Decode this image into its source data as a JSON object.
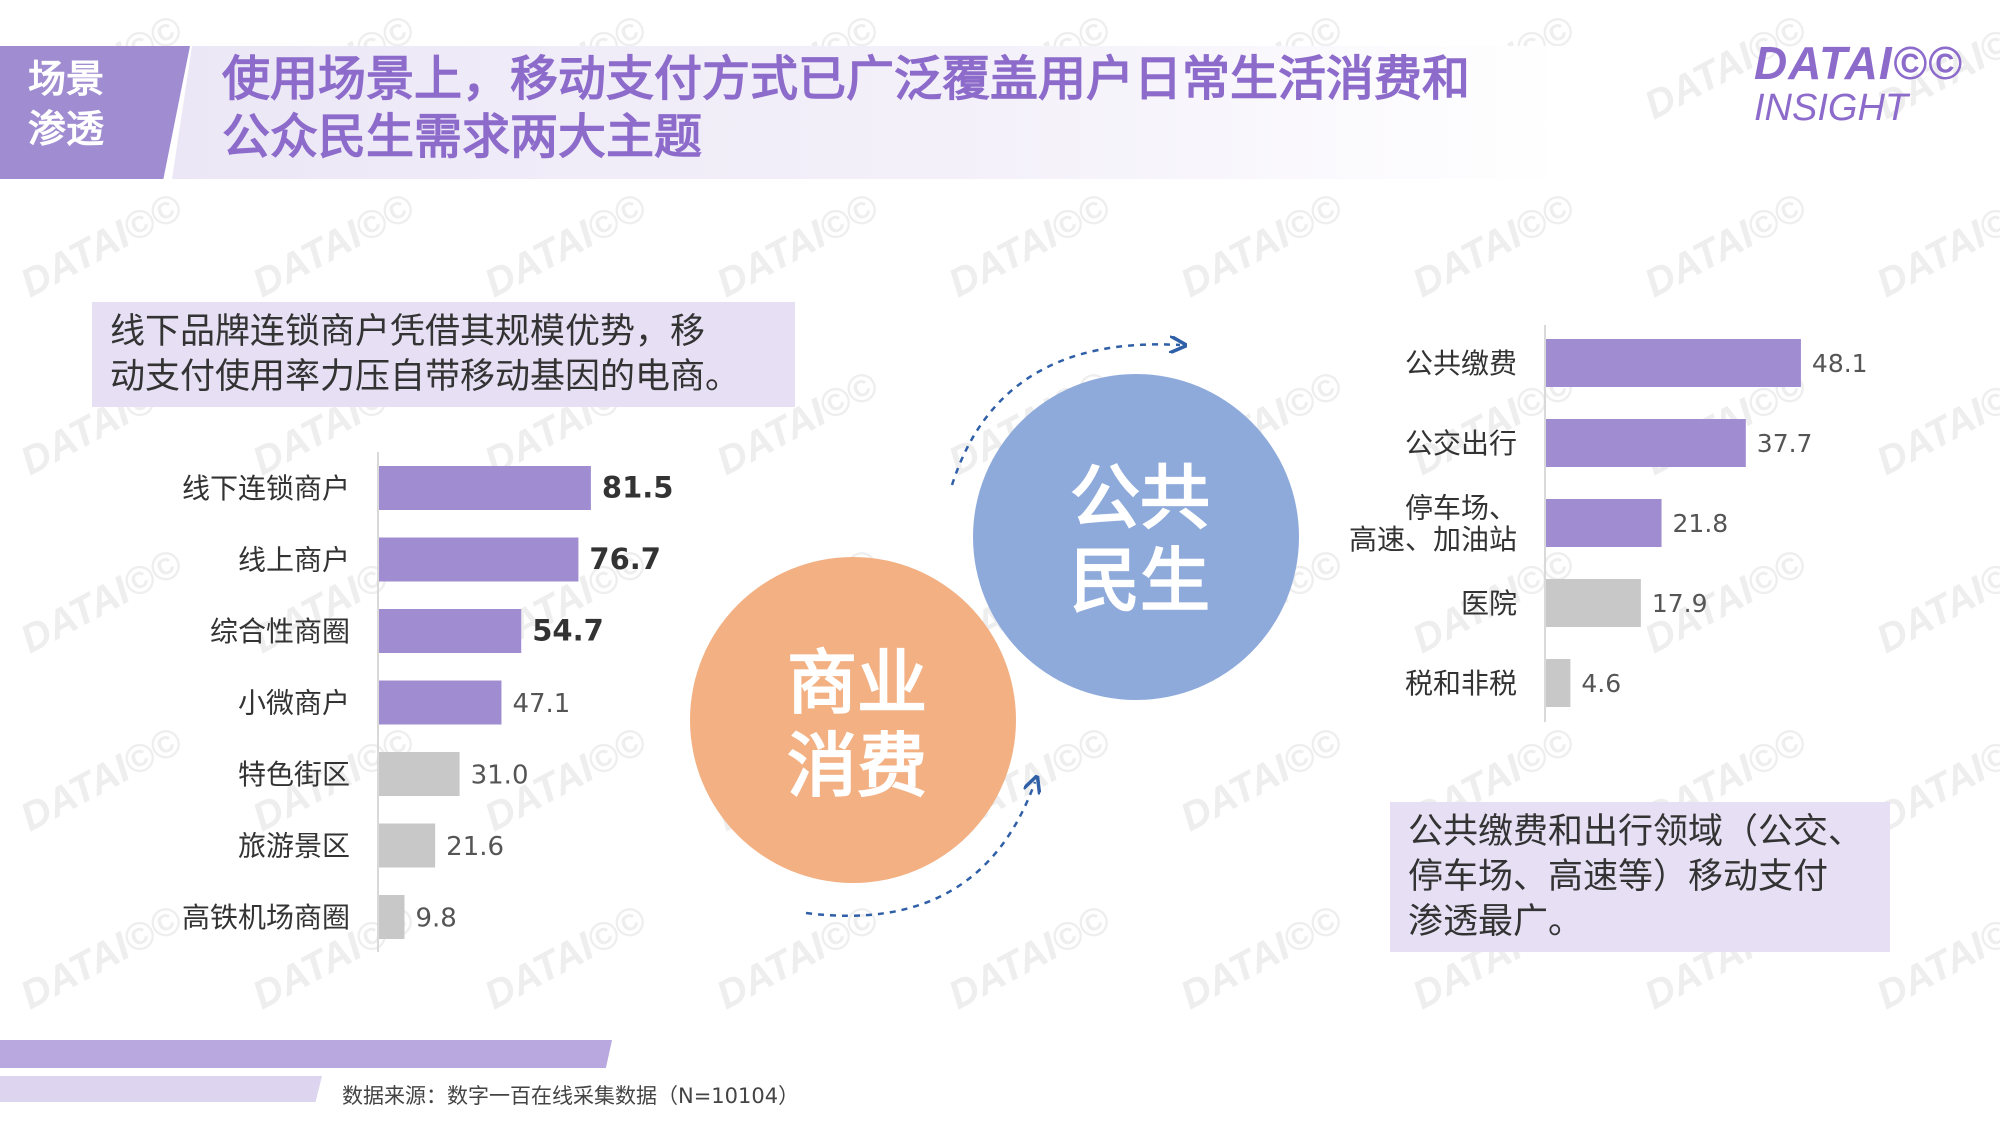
{
  "header": {
    "tag_line1": "场景",
    "tag_line2": "渗透",
    "title_line1": "使用场景上，移动支付方式已广泛覆盖用户日常生活消费和",
    "title_line2": "公众民生需求两大主题"
  },
  "logo": {
    "line1": "DATAI©©",
    "line2": "INSIGHT",
    "watermark_text": "DATAI©©"
  },
  "callout_left": {
    "line1": "线下品牌连锁商户凭借其规模优势，移",
    "line2": "动支付使用率力压自带移动基因的电商。"
  },
  "callout_right": {
    "line1": "公共缴费和出行领域（公交、",
    "line2": "停车场、高速等）移动支付",
    "line3": "渗透最广。"
  },
  "circles": {
    "commerce": {
      "line1": "商业",
      "line2": "消费",
      "color": "#f2b083"
    },
    "public": {
      "line1": "公共",
      "line2": "民生",
      "color": "#8eaadb"
    }
  },
  "colors": {
    "highlight_bar": "#a08dd1",
    "normal_bar": "#c8c8c8",
    "accent": "#8c6bcb"
  },
  "chart_data": [
    {
      "type": "bar",
      "orientation": "horizontal",
      "title": "商业消费",
      "categories": [
        "线下连锁商户",
        "线上商户",
        "综合性商圈",
        "小微商户",
        "特色街区",
        "旅游景区",
        "高铁机场商圈"
      ],
      "values": [
        81.5,
        76.7,
        54.7,
        47.1,
        31.0,
        21.6,
        9.8
      ],
      "labels": [
        "81.5",
        "76.7",
        "54.7",
        "47.1",
        "31.0",
        "21.6",
        "9.8"
      ],
      "highlight": [
        true,
        true,
        true,
        true,
        false,
        false,
        false
      ],
      "bold_labels": [
        true,
        true,
        true,
        false,
        false,
        false,
        false
      ],
      "xlim": [
        0,
        100
      ]
    },
    {
      "type": "bar",
      "orientation": "horizontal",
      "title": "公共民生",
      "categories": [
        [
          "公共缴费"
        ],
        [
          "公交出行"
        ],
        [
          "停车场、",
          "高速、加油站"
        ],
        [
          "医院"
        ],
        [
          "税和非税"
        ]
      ],
      "values": [
        48.1,
        37.7,
        21.8,
        17.9,
        4.6
      ],
      "labels": [
        "48.1",
        "37.7",
        "21.8",
        "17.9",
        "4.6"
      ],
      "highlight": [
        true,
        true,
        true,
        false,
        false
      ],
      "xlim": [
        0,
        100
      ]
    }
  ],
  "source": "数据来源：数字一百在线采集数据（N=10104）"
}
